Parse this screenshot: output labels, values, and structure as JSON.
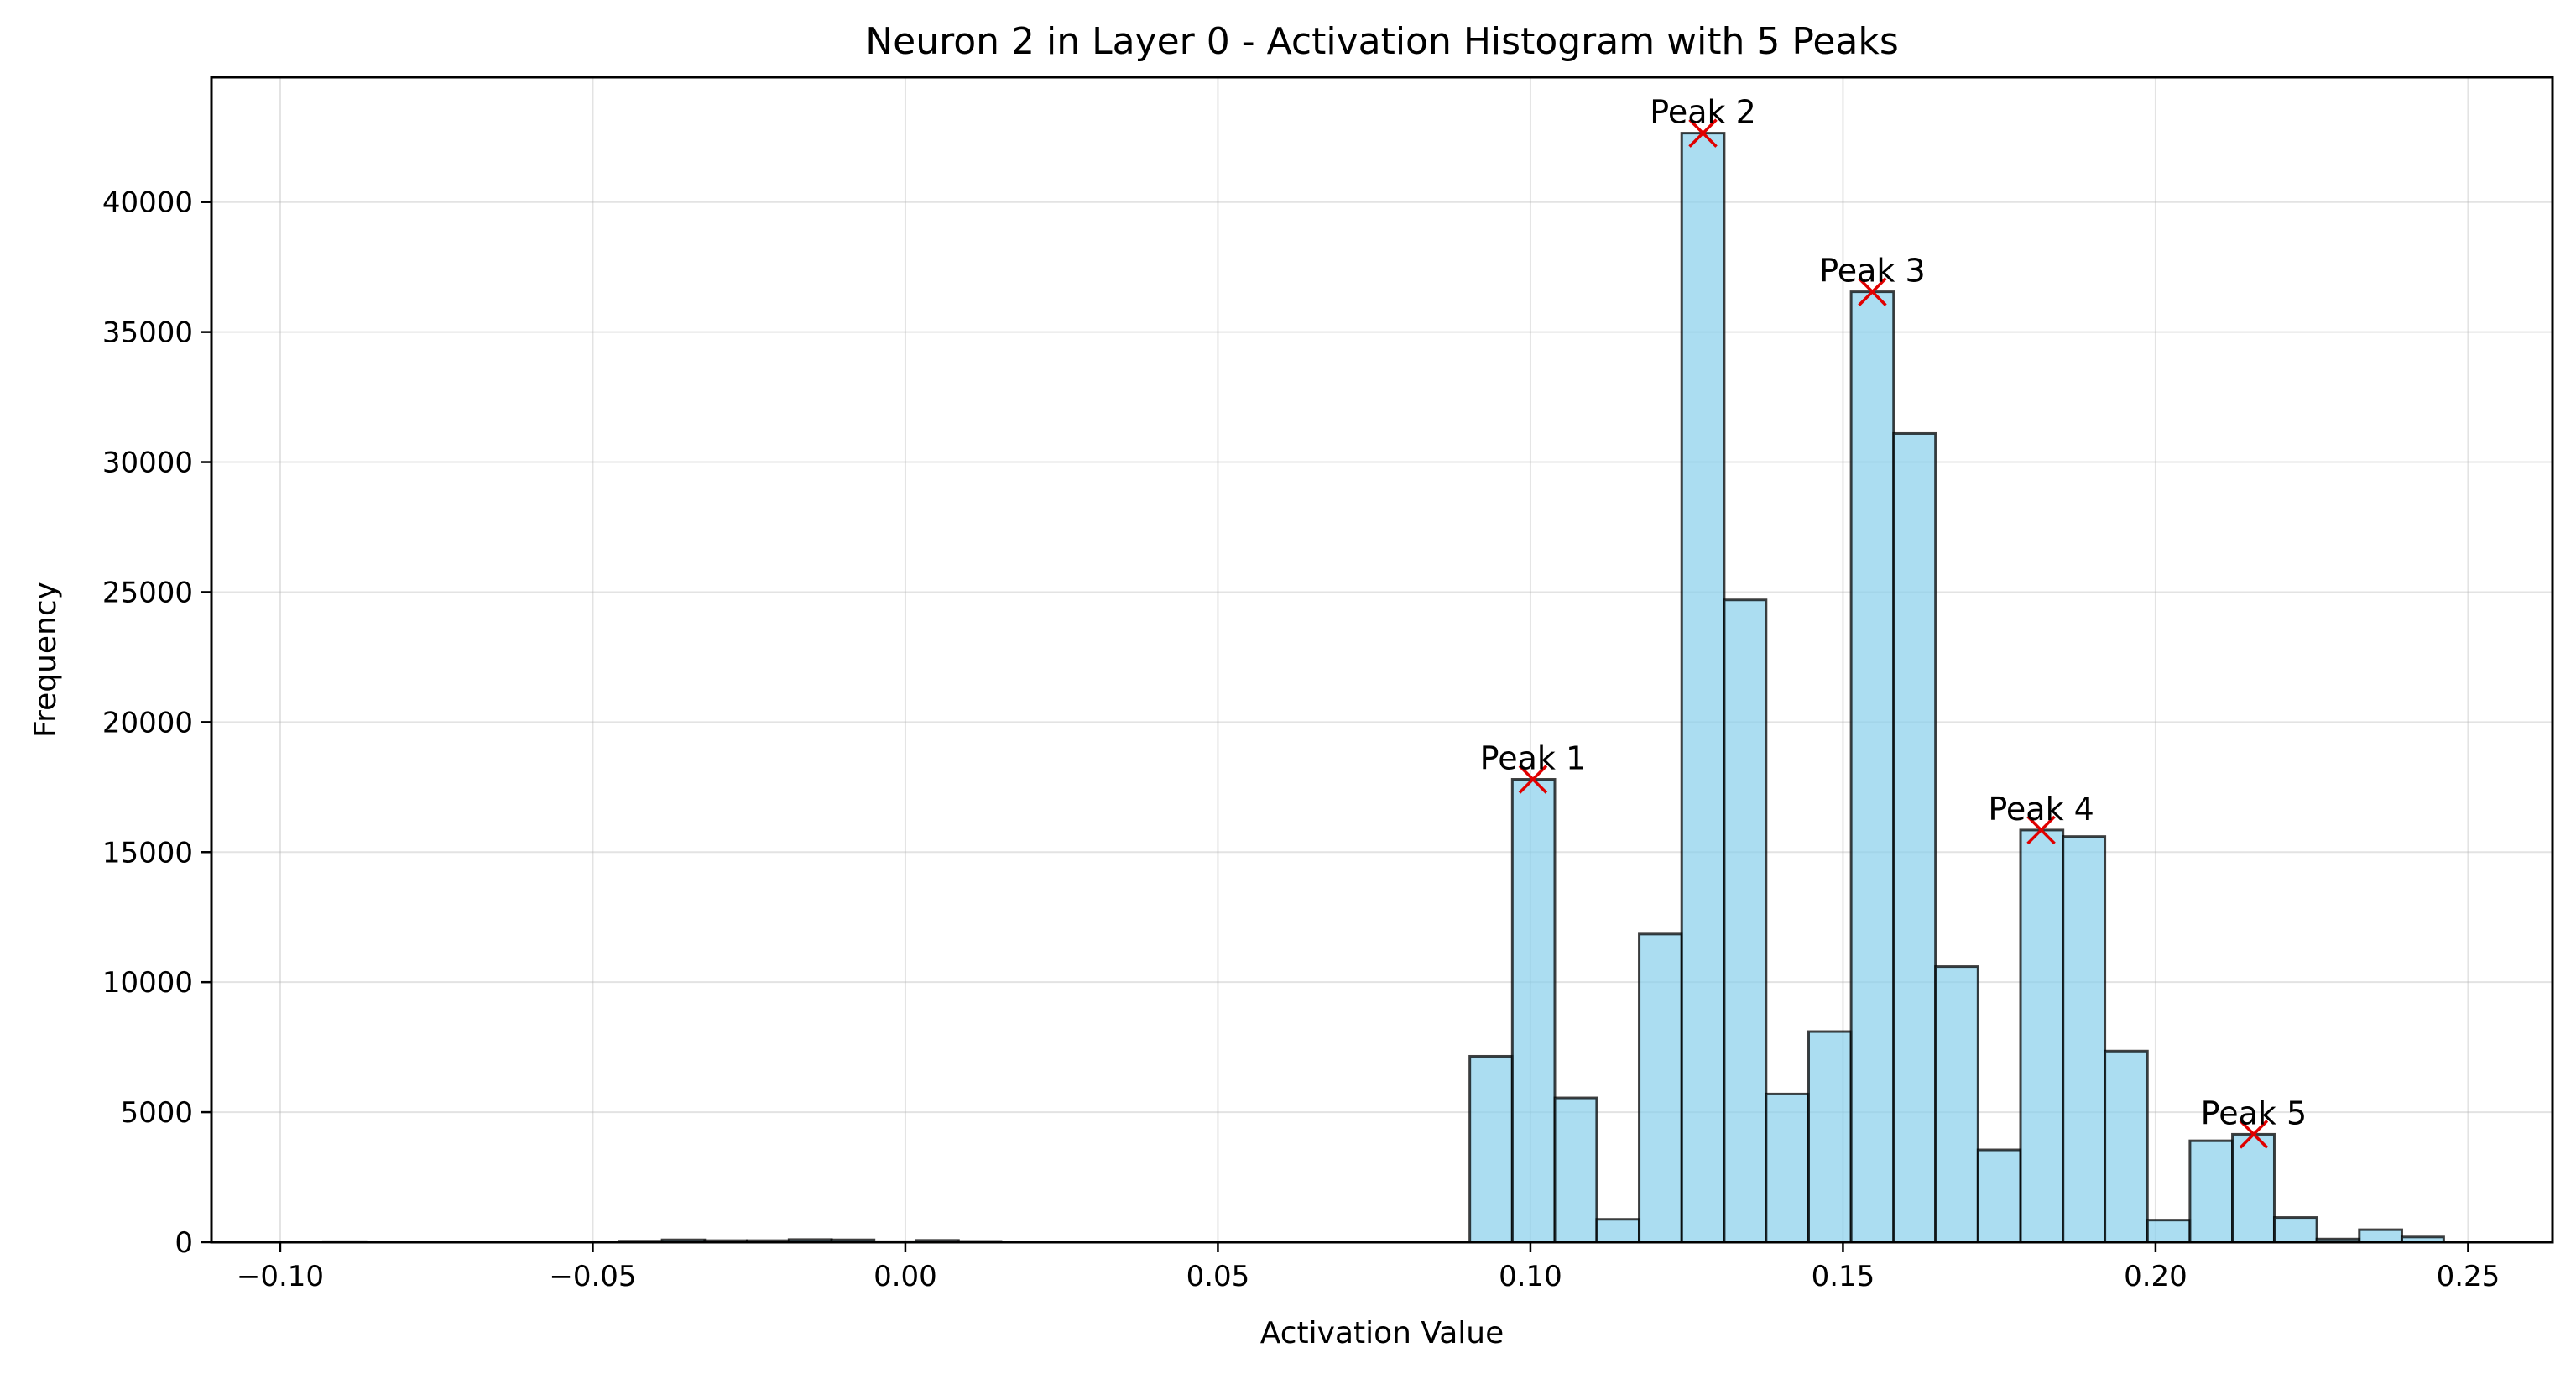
{
  "chart_data": {
    "type": "bar",
    "title": "Neuron 2 in Layer 0 - Activation Histogram with 5 Peaks",
    "xlabel": "Activation Value",
    "ylabel": "Frequency",
    "xlim": [
      -0.111,
      0.2635
    ],
    "ylim": [
      0,
      44800
    ],
    "grid": true,
    "xticks": [
      -0.1,
      -0.05,
      0.0,
      0.05,
      0.1,
      0.15,
      0.2,
      0.25
    ],
    "xtick_labels": [
      "−0.10",
      "−0.05",
      "0.00",
      "0.05",
      "0.10",
      "0.15",
      "0.20",
      "0.25"
    ],
    "yticks": [
      0,
      5000,
      10000,
      15000,
      20000,
      25000,
      30000,
      35000,
      40000
    ],
    "ytick_labels": [
      "0",
      "5000",
      "10000",
      "15000",
      "20000",
      "25000",
      "30000",
      "35000",
      "40000"
    ],
    "bins": {
      "start": -0.0931,
      "width": 0.006775,
      "counts": [
        20,
        10,
        10,
        10,
        10,
        10,
        10,
        10,
        10,
        10,
        10,
        10,
        10,
        10,
        40,
        30,
        30,
        30,
        40,
        60,
        40,
        10,
        30,
        20,
        10,
        10,
        10,
        10,
        10,
        10,
        10,
        10,
        10,
        10,
        10,
        10,
        10,
        10,
        10,
        10,
        10,
        10,
        10,
        10,
        10,
        10,
        10,
        10,
        10,
        10,
        10,
        10,
        10,
        10,
        10,
        10,
        10,
        10,
        10,
        10,
        10,
        10,
        10,
        10,
        10,
        10,
        10,
        10,
        10,
        10,
        10,
        10,
        10,
        10,
        10,
        10,
        10,
        10,
        10,
        10,
        10,
        10,
        10,
        10,
        10,
        10,
        10,
        10,
        10,
        10,
        10,
        10,
        10,
        10,
        10,
        10,
        10,
        10,
        10,
        10,
        10,
        10,
        10,
        10,
        10,
        10,
        10,
        10,
        10,
        10,
        10,
        10,
        10,
        10,
        10,
        10,
        10,
        10,
        10,
        10,
        10,
        10,
        10,
        10,
        10,
        10,
        10,
        10,
        10,
        10,
        10,
        10,
        10,
        10,
        10,
        10,
        10,
        10,
        10,
        10
      ]
    },
    "histogram": {
      "edges": [
        -0.0931,
        -0.0863,
        -0.0795,
        -0.0728,
        -0.066,
        -0.0592,
        -0.0524,
        -0.0457,
        -0.0389,
        -0.0321,
        -0.0253,
        -0.0186,
        -0.0118,
        -0.005,
        0.0018,
        0.0085,
        0.0153,
        0.0221,
        0.0289,
        0.0356,
        0.0424,
        0.0492,
        0.056,
        0.0627,
        0.0695,
        0.0763,
        0.083,
        0.0903,
        0.0971,
        0.1039,
        0.1106,
        0.1174,
        0.1242,
        0.131,
        0.1377,
        0.1445,
        0.1513,
        0.1581,
        0.1648,
        0.1716,
        0.1784,
        0.1852,
        0.1919,
        0.1987,
        0.2055,
        0.2123,
        0.219,
        0.2258,
        0.2326,
        0.2394,
        0.2461
      ],
      "counts": [
        20,
        10,
        10,
        10,
        10,
        10,
        10,
        40,
        90,
        60,
        60,
        100,
        90,
        20,
        70,
        30,
        10,
        10,
        10,
        10,
        10,
        10,
        10,
        10,
        10,
        10,
        10,
        7150,
        17800,
        5550,
        880,
        11850,
        42650,
        24700,
        5700,
        8100,
        36550,
        31100,
        10600,
        3550,
        15850,
        15600,
        7350,
        850,
        3900,
        4150,
        950,
        120,
        480,
        200
      ]
    },
    "peaks": [
      {
        "label": "Peak 1",
        "x": 0.1004,
        "y": 17800
      },
      {
        "label": "Peak 2",
        "x": 0.1276,
        "y": 42650
      },
      {
        "label": "Peak 3",
        "x": 0.1547,
        "y": 36550
      },
      {
        "label": "Peak 4",
        "x": 0.1817,
        "y": 15850
      },
      {
        "label": "Peak 5",
        "x": 0.2157,
        "y": 4150
      }
    ]
  }
}
